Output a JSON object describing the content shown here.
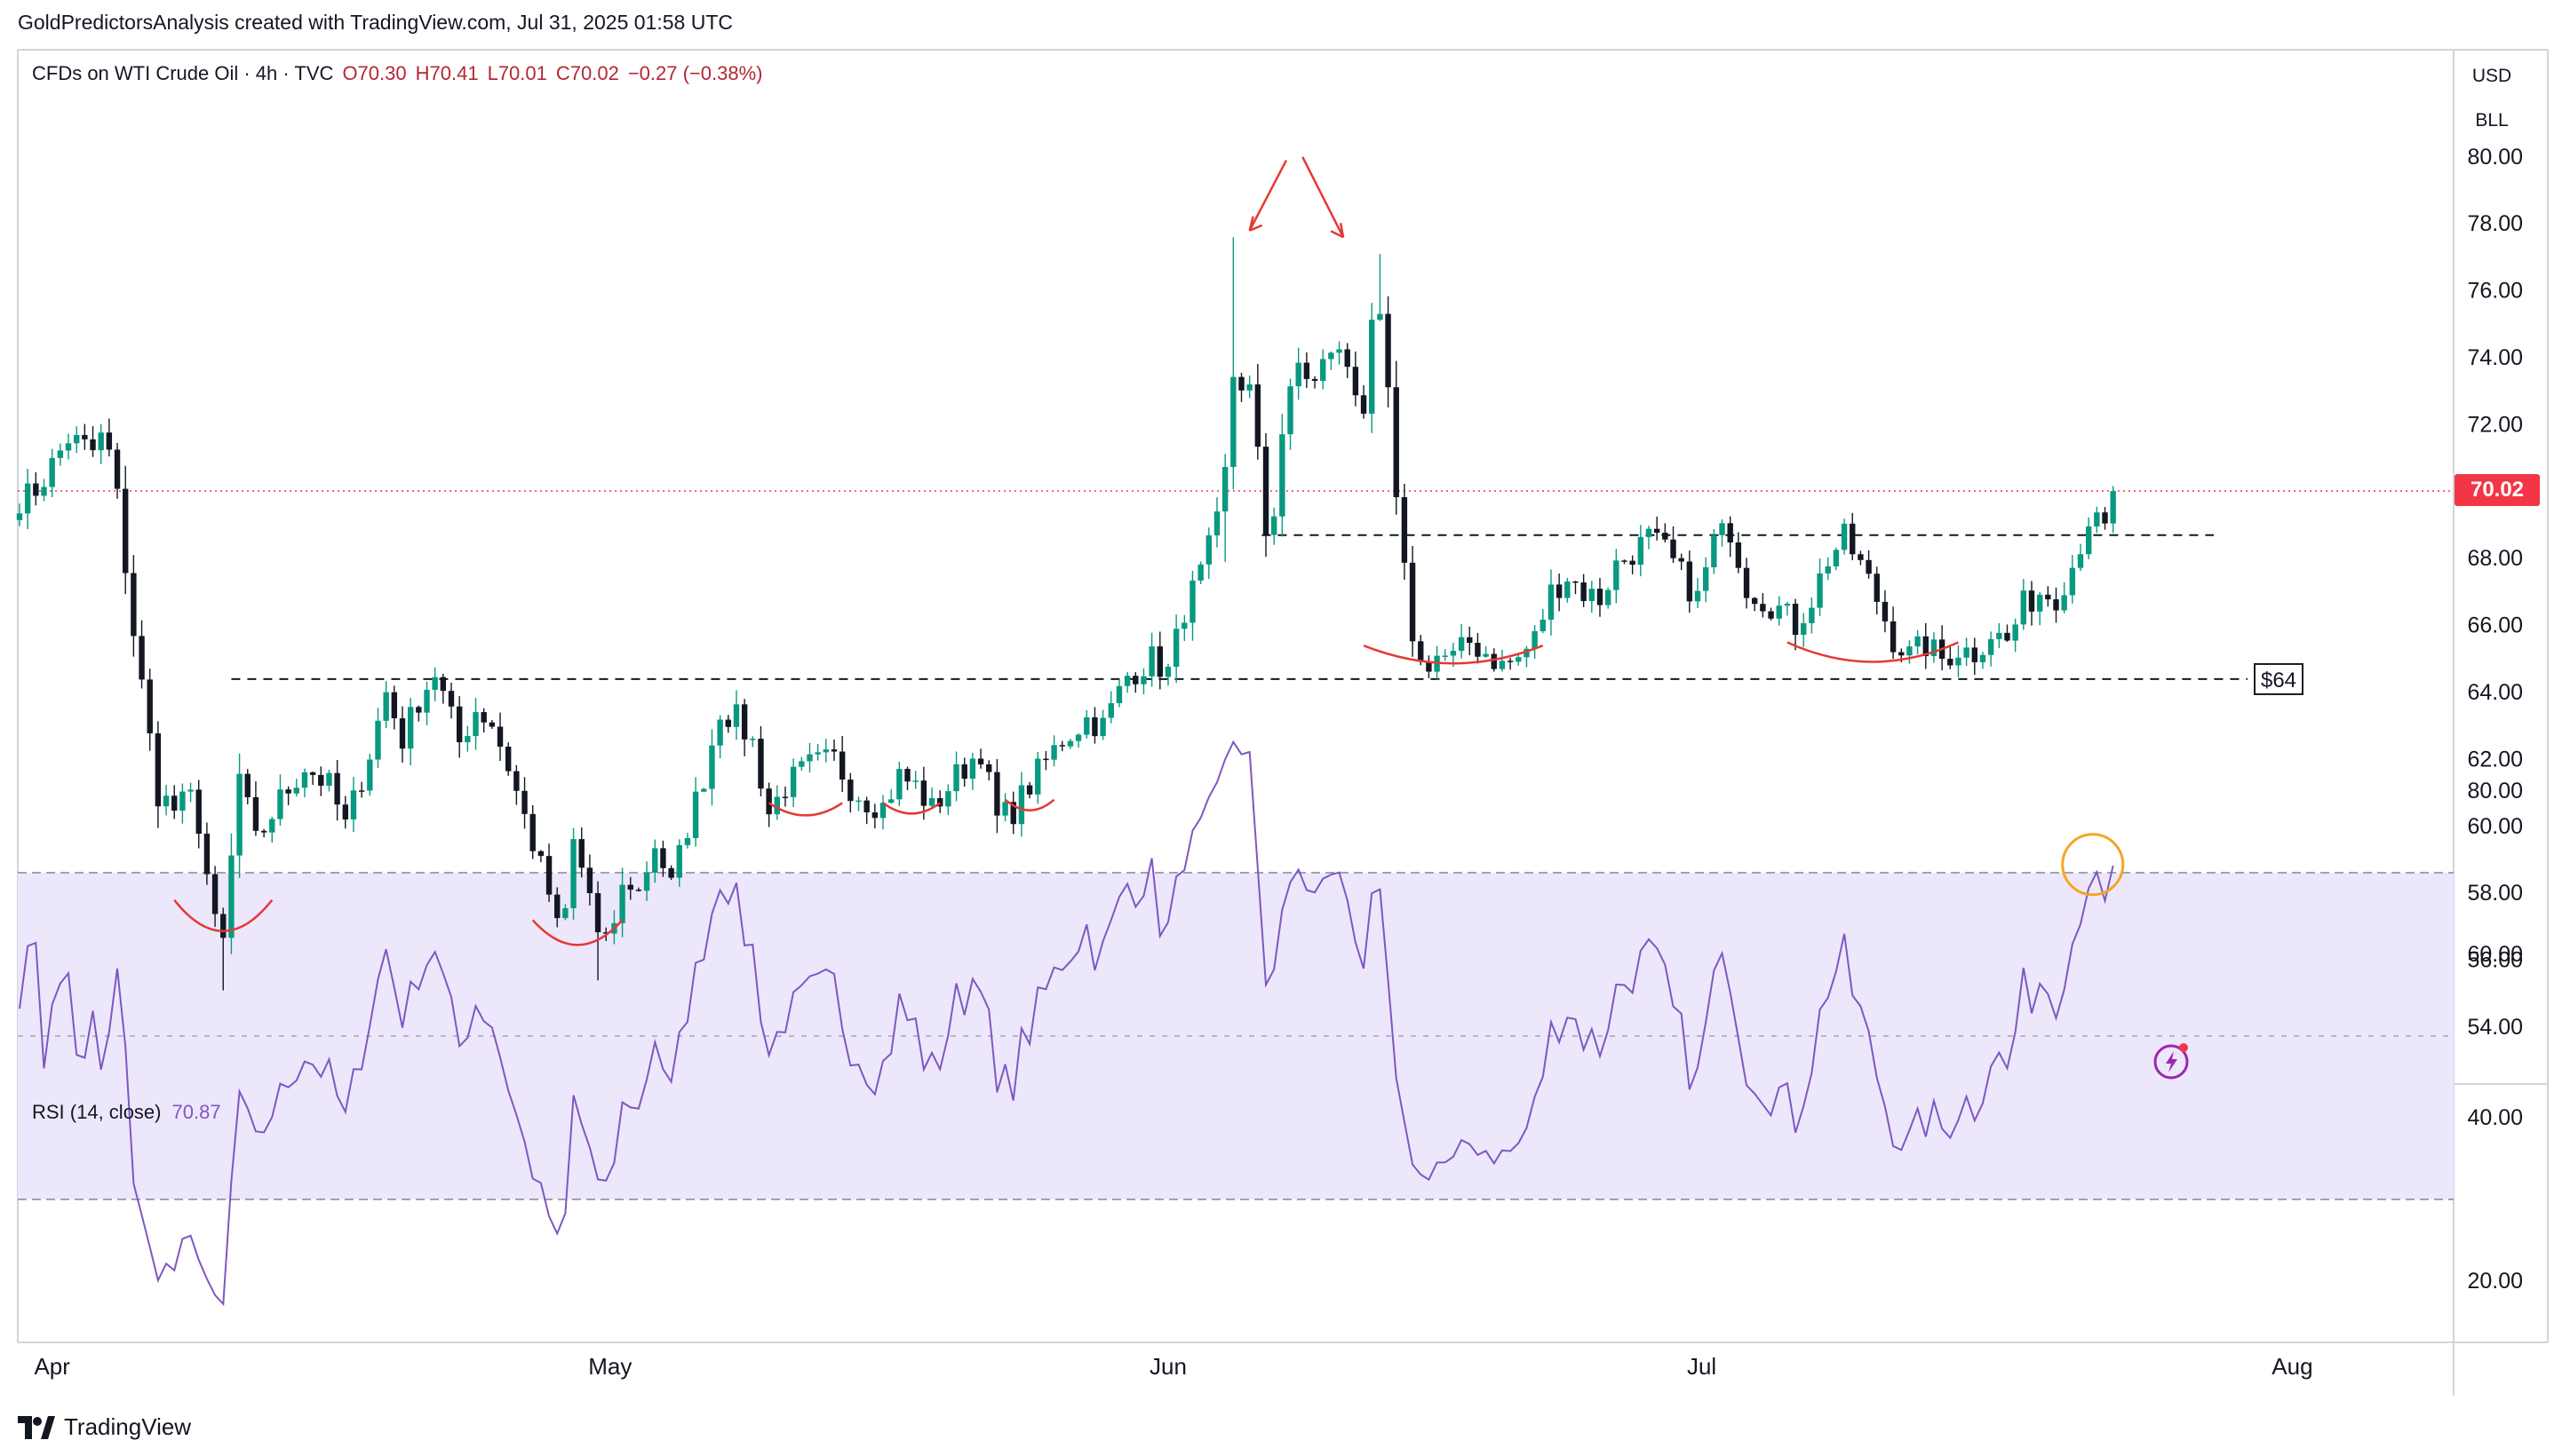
{
  "header": {
    "attribution": "GoldPredictorsAnalysis created with TradingView.com, Jul 31, 2025 01:58 UTC"
  },
  "legend": {
    "symbol": "CFDs on WTI Crude Oil · 4h · TVC",
    "open": "O70.30",
    "high": "H70.41",
    "low": "L70.01",
    "close": "C70.02",
    "change": "−0.27 (−0.38%)"
  },
  "rsi_legend": {
    "label": "RSI (14, close)",
    "value": "70.87"
  },
  "price_axis": {
    "currency": "USD",
    "unit": "BLL",
    "last_price_tag": "70.02"
  },
  "annotations": {
    "support_label": "$64"
  },
  "branding": {
    "text": "TradingView"
  },
  "colors": {
    "up": "#089981",
    "down": "#131722",
    "annotation_red": "#e53935",
    "rsi_line": "#7e57c2",
    "rsi_band": "#ede7fb",
    "last_price": "#f23645",
    "highlight_circle": "#f5a623"
  },
  "chart_data": [
    {
      "type": "candlestick",
      "title": "",
      "x_ticks": [
        "Apr",
        "May",
        "Jun",
        "Jul",
        "Aug"
      ],
      "y_ticks": [
        "80.00",
        "78.00",
        "76.00",
        "74.00",
        "72.00",
        "70.00",
        "68.00",
        "66.00",
        "64.00",
        "62.00",
        "60.00",
        "58.00",
        "56.00",
        "54.00"
      ],
      "ylim": [
        52.4,
        81.0
      ],
      "last_price": 70.02,
      "levels": [
        {
          "name": "support",
          "value": 64.4,
          "style": "dashed",
          "label": "$64"
        },
        {
          "name": "resistance",
          "value": 68.7,
          "style": "dashed"
        }
      ],
      "path_points": [
        [
          0,
          69.8
        ],
        [
          1.5,
          69.9
        ],
        [
          3,
          70.4
        ],
        [
          6,
          71.6
        ],
        [
          9,
          71.2
        ],
        [
          10.5,
          71.8
        ],
        [
          12,
          69.8
        ],
        [
          14,
          65.8
        ],
        [
          17,
          61.0
        ],
        [
          19,
          60.5
        ],
        [
          21.5,
          60.9
        ],
        [
          24,
          57.0
        ],
        [
          25,
          56.5
        ],
        [
          27,
          61.5
        ],
        [
          29,
          59.5
        ],
        [
          32,
          60.8
        ],
        [
          35,
          61.8
        ],
        [
          38,
          61.2
        ],
        [
          40,
          60.0
        ],
        [
          43,
          62.2
        ],
        [
          45,
          64.0
        ],
        [
          47,
          62.6
        ],
        [
          49,
          63.8
        ],
        [
          51,
          64.6
        ],
        [
          52,
          63.9
        ],
        [
          54,
          62.5
        ],
        [
          56,
          63.5
        ],
        [
          58,
          63.1
        ],
        [
          60,
          61.8
        ],
        [
          63,
          59.5
        ],
        [
          65,
          58.0
        ],
        [
          66.5,
          56.4
        ],
        [
          68,
          59.5
        ],
        [
          70,
          58.0
        ],
        [
          71.5,
          56.0
        ],
        [
          73,
          57.2
        ],
        [
          74.5,
          58.5
        ],
        [
          76,
          58.0
        ],
        [
          78,
          59.5
        ],
        [
          80,
          58.2
        ],
        [
          82,
          60.0
        ],
        [
          84,
          61.5
        ],
        [
          86,
          63.5
        ],
        [
          88,
          63.2
        ],
        [
          90,
          62.5
        ],
        [
          92,
          60.4
        ],
        [
          94,
          61.2
        ],
        [
          97,
          61.8
        ],
        [
          100,
          62.0
        ],
        [
          102,
          61.2
        ],
        [
          104,
          60.8
        ],
        [
          106,
          60.6
        ],
        [
          108,
          61.5
        ],
        [
          110,
          61.2
        ],
        [
          112,
          60.5
        ],
        [
          115,
          61.5
        ],
        [
          118,
          62.3
        ],
        [
          120,
          60.2
        ],
        [
          122,
          60.5
        ],
        [
          125,
          61.6
        ],
        [
          128,
          62.6
        ],
        [
          131,
          63.2
        ],
        [
          133,
          63.0
        ],
        [
          136,
          64.5
        ],
        [
          139,
          65.0
        ],
        [
          141,
          64.6
        ],
        [
          143,
          66.5
        ],
        [
          145,
          67.5
        ],
        [
          147,
          69.0
        ],
        [
          148,
          70.5
        ],
        [
          149,
          73.5
        ],
        [
          151,
          73.0
        ],
        [
          152,
          71.0
        ],
        [
          153,
          68.8
        ],
        [
          154,
          69.5
        ],
        [
          155,
          71.8
        ],
        [
          157,
          73.8
        ],
        [
          159,
          73.2
        ],
        [
          161,
          74.3
        ],
        [
          163,
          73.8
        ],
        [
          165,
          72.5
        ],
        [
          166.5,
          75.8
        ],
        [
          168,
          73.0
        ],
        [
          169,
          69.5
        ],
        [
          170,
          67.5
        ],
        [
          171,
          65.8
        ],
        [
          172,
          64.8
        ],
        [
          174,
          65.1
        ],
        [
          176,
          65.0
        ],
        [
          178,
          65.5
        ],
        [
          180,
          65.2
        ],
        [
          182,
          64.8
        ],
        [
          184,
          65.0
        ],
        [
          186,
          65.6
        ],
        [
          188,
          67.0
        ],
        [
          190,
          67.5
        ],
        [
          192,
          67.0
        ],
        [
          194,
          66.8
        ],
        [
          196,
          67.8
        ],
        [
          198,
          68.2
        ],
        [
          200,
          68.6
        ],
        [
          202,
          68.2
        ],
        [
          204,
          67.5
        ],
        [
          206,
          66.8
        ],
        [
          208,
          68.5
        ],
        [
          210,
          68.9
        ],
        [
          212,
          67.2
        ],
        [
          214,
          66.8
        ],
        [
          216,
          66.5
        ],
        [
          218,
          66.0
        ],
        [
          220,
          66.8
        ],
        [
          222,
          68.0
        ],
        [
          224,
          68.6
        ],
        [
          226,
          67.8
        ],
        [
          228,
          66.8
        ],
        [
          230,
          65.6
        ],
        [
          232,
          65.1
        ],
        [
          234,
          65.4
        ],
        [
          236,
          65.0
        ],
        [
          238,
          65.3
        ],
        [
          240,
          65.2
        ],
        [
          242,
          65.8
        ],
        [
          244,
          65.5
        ],
        [
          246,
          66.6
        ],
        [
          248,
          67.0
        ],
        [
          250,
          66.9
        ],
        [
          252,
          67.8
        ],
        [
          254,
          69.2
        ],
        [
          256,
          68.8
        ],
        [
          257.5,
          70.0
        ]
      ],
      "annotations": [
        "rounded-bottom arcs at swing lows",
        "two downward arrows marking double top near 77",
        "dashed support line at $64",
        "dashed resistance line near 68.7"
      ]
    },
    {
      "type": "line",
      "title": "",
      "series_label": "RSI (14, close)",
      "y_ticks": [
        "80.00",
        "60.00",
        "40.00",
        "20.00"
      ],
      "ylim": [
        8,
        88
      ],
      "bands": [
        70,
        50,
        30
      ],
      "last_value": 70.87
    }
  ]
}
